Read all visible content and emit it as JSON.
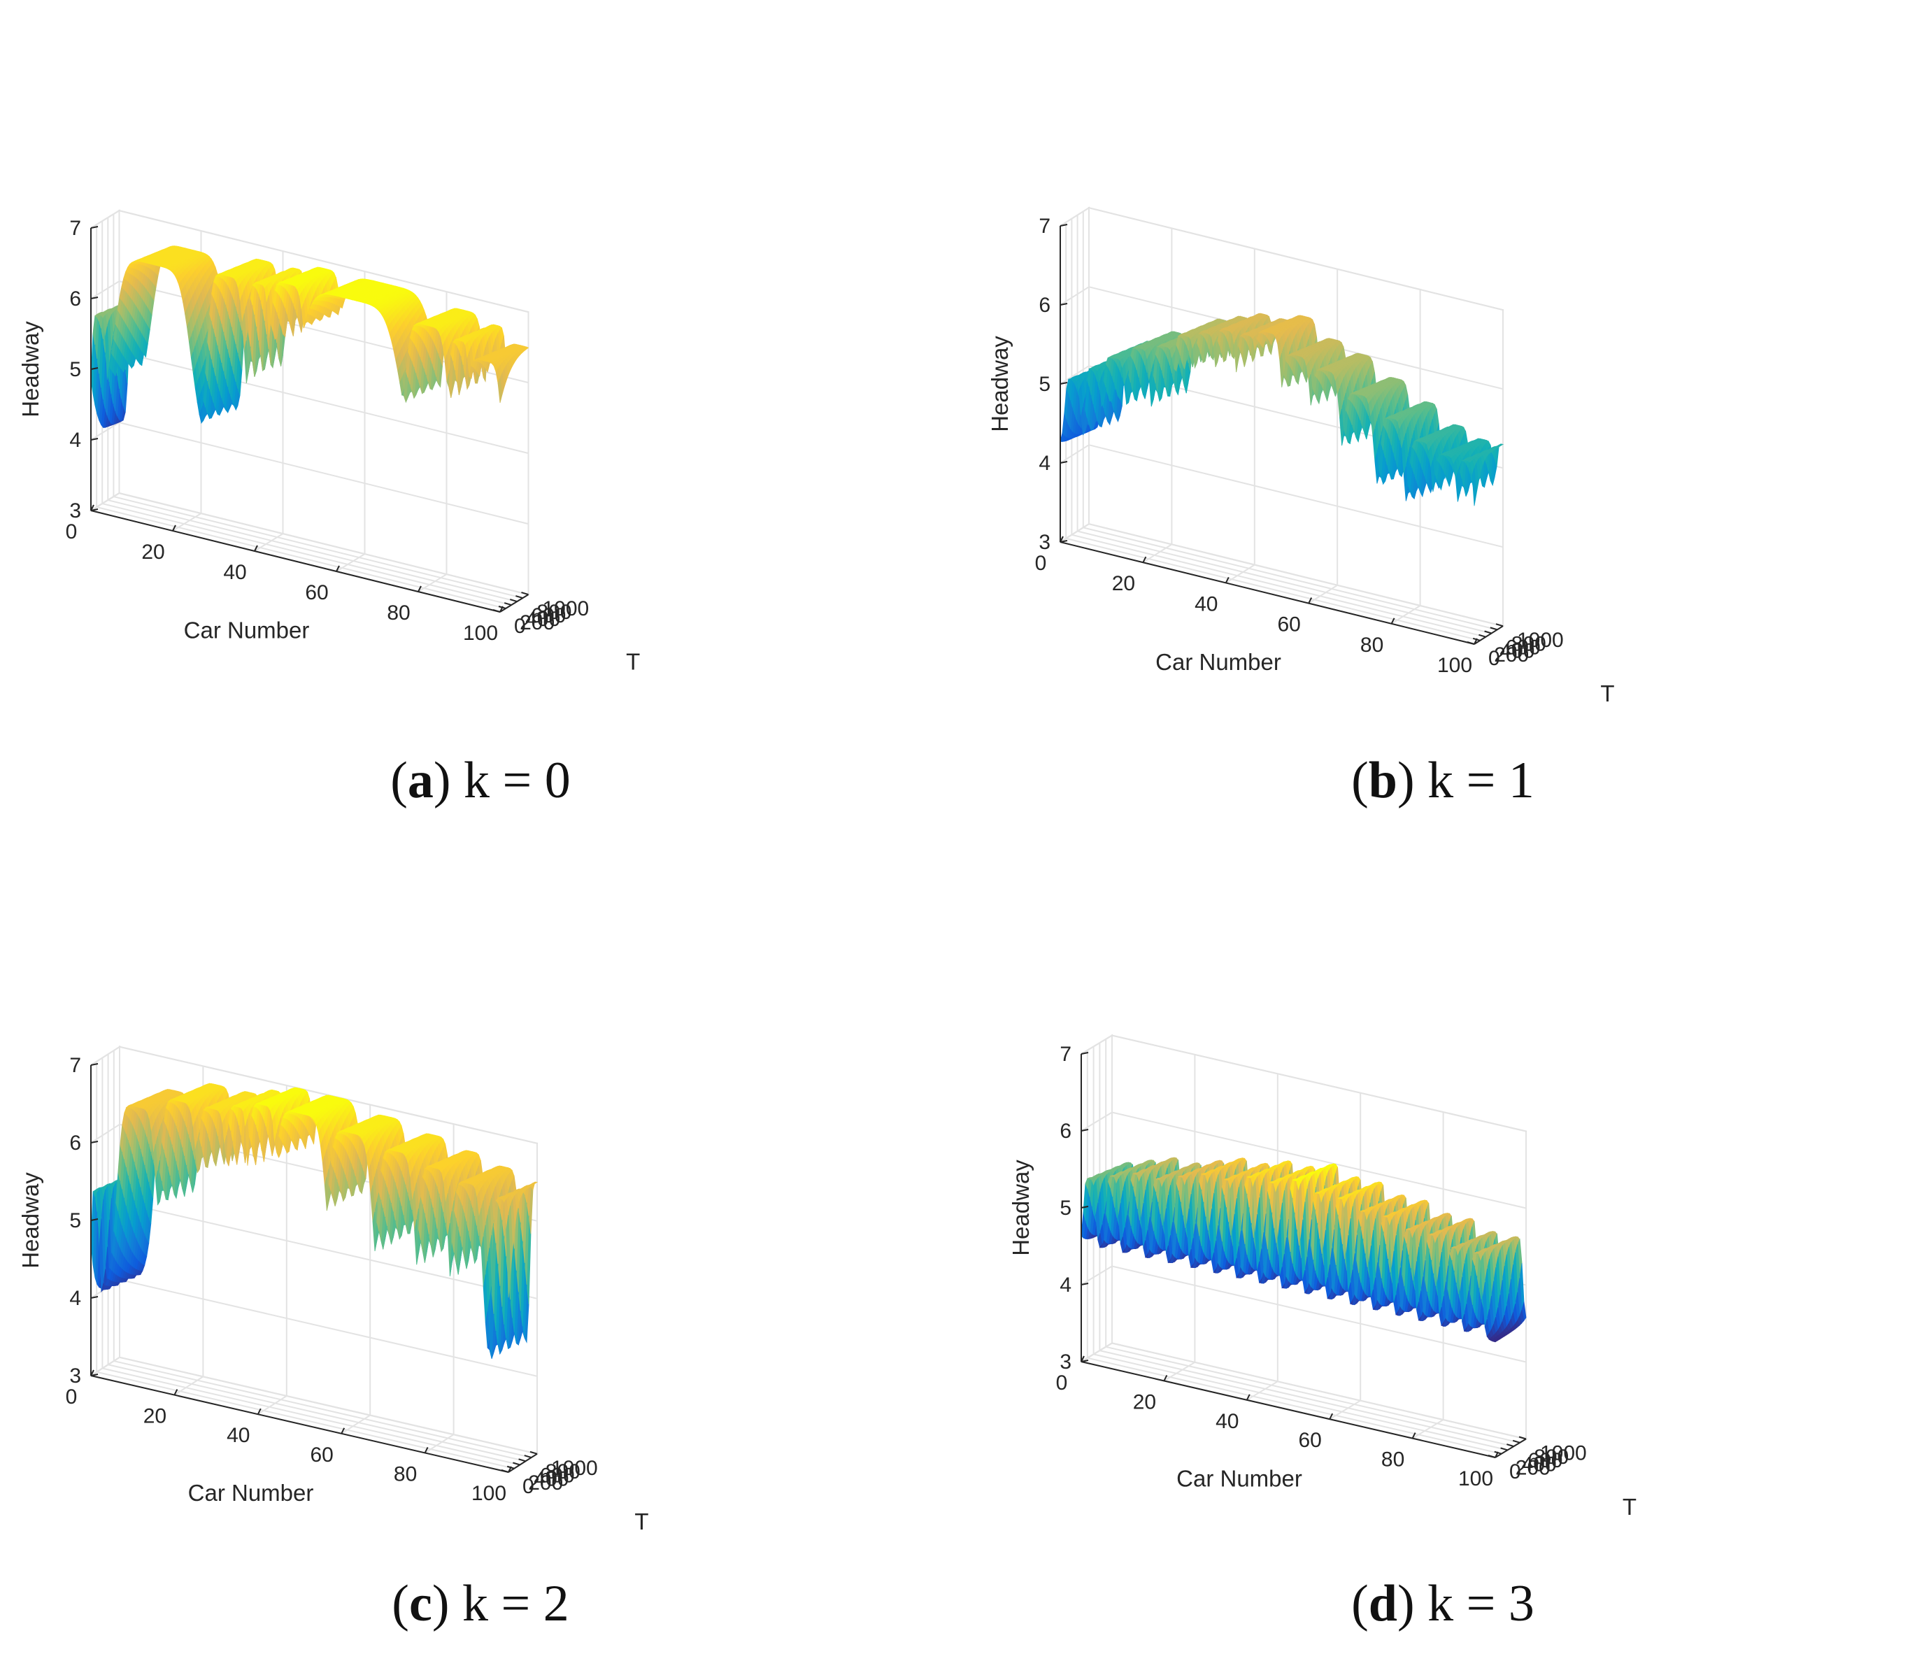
{
  "chart_data": [
    {
      "type": "surface",
      "panel_letter": "a",
      "caption_param": "k = 0",
      "xlabel": "Car Number",
      "ylabel": "T",
      "zlabel": "Headway",
      "xlim": [
        0,
        100
      ],
      "ylim": [
        0,
        1000
      ],
      "zlim": [
        3,
        7
      ],
      "xticks": [
        "0",
        "20",
        "40",
        "60",
        "80",
        "100"
      ],
      "yticks": [
        "0",
        "200",
        "400",
        "600",
        "800",
        "1000"
      ],
      "zticks": [
        "3",
        "4",
        "5",
        "6",
        "7"
      ],
      "grid": true,
      "colormap": "parula",
      "z_min": 3.9,
      "z_max": 6.9,
      "waves": [
        {
          "car": 2,
          "width": 2,
          "amp": 5.8
        },
        {
          "car": 15,
          "width": 10,
          "amp": 6.7
        },
        {
          "car": 33,
          "width": 5,
          "amp": 6.8
        },
        {
          "car": 41,
          "width": 3,
          "amp": 6.8
        },
        {
          "car": 48,
          "width": 5,
          "amp": 6.9
        },
        {
          "car": 63,
          "width": 14,
          "amp": 6.9
        },
        {
          "car": 82,
          "width": 6,
          "amp": 6.8
        },
        {
          "car": 90,
          "width": 3,
          "amp": 6.7
        },
        {
          "car": 96,
          "width": 5,
          "amp": 6.5
        }
      ]
    },
    {
      "type": "surface",
      "panel_letter": "b",
      "caption_param": "k = 1",
      "xlabel": "Car Number",
      "ylabel": "T",
      "zlabel": "Headway",
      "xlim": [
        0,
        100
      ],
      "ylim": [
        0,
        1000
      ],
      "zlim": [
        3,
        7
      ],
      "xticks": [
        "0",
        "20",
        "40",
        "60",
        "80",
        "100"
      ],
      "yticks": [
        "0",
        "200",
        "400",
        "600",
        "800",
        "1000"
      ],
      "zticks": [
        "3",
        "4",
        "5",
        "6",
        "7"
      ],
      "grid": true,
      "colormap": "parula",
      "z_min": 4.2,
      "z_max": 6.3,
      "waves": [
        {
          "car": 3,
          "width": 2,
          "amp": 5.1
        },
        {
          "car": 8,
          "width": 2,
          "amp": 5.3
        },
        {
          "car": 13,
          "width": 3,
          "amp": 5.5
        },
        {
          "car": 19,
          "width": 3,
          "amp": 5.7
        },
        {
          "car": 25,
          "width": 3,
          "amp": 5.8
        },
        {
          "car": 30,
          "width": 3,
          "amp": 6.0
        },
        {
          "car": 35,
          "width": 3,
          "amp": 6.1
        },
        {
          "car": 40,
          "width": 3,
          "amp": 6.2
        },
        {
          "car": 45,
          "width": 3,
          "amp": 6.2
        },
        {
          "car": 50,
          "width": 4,
          "amp": 6.3
        },
        {
          "car": 57,
          "width": 4,
          "amp": 6.1
        },
        {
          "car": 64,
          "width": 4,
          "amp": 6.0
        },
        {
          "car": 72,
          "width": 4,
          "amp": 5.8
        },
        {
          "car": 80,
          "width": 3,
          "amp": 5.6
        },
        {
          "car": 87,
          "width": 3,
          "amp": 5.4
        },
        {
          "car": 93,
          "width": 3,
          "amp": 5.3
        },
        {
          "car": 98,
          "width": 2,
          "amp": 5.3
        }
      ]
    },
    {
      "type": "surface",
      "panel_letter": "c",
      "caption_param": "k = 2",
      "xlabel": "Car Number",
      "ylabel": "T",
      "zlabel": "Headway",
      "xlim": [
        0,
        100
      ],
      "ylim": [
        0,
        1000
      ],
      "zlim": [
        3,
        7
      ],
      "xticks": [
        "0",
        "20",
        "40",
        "60",
        "80",
        "100"
      ],
      "yticks": [
        "0",
        "200",
        "400",
        "600",
        "800",
        "1000"
      ],
      "zticks": [
        "3",
        "4",
        "5",
        "6",
        "7"
      ],
      "grid": true,
      "colormap": "parula",
      "z_min": 4.0,
      "z_max": 7.0,
      "waves": [
        {
          "car": 1,
          "width": 1,
          "amp": 5.4
        },
        {
          "car": 11,
          "width": 5,
          "amp": 6.6
        },
        {
          "car": 21,
          "width": 5,
          "amp": 6.8
        },
        {
          "car": 29,
          "width": 4,
          "amp": 6.8
        },
        {
          "car": 35,
          "width": 3,
          "amp": 6.9
        },
        {
          "car": 41,
          "width": 4,
          "amp": 7.0
        },
        {
          "car": 50,
          "width": 7,
          "amp": 7.0
        },
        {
          "car": 62,
          "width": 6,
          "amp": 6.9
        },
        {
          "car": 73,
          "width": 5,
          "amp": 6.8
        },
        {
          "car": 82,
          "width": 4,
          "amp": 6.7
        },
        {
          "car": 90,
          "width": 4,
          "amp": 6.6
        },
        {
          "car": 98,
          "width": 2,
          "amp": 6.5
        }
      ]
    },
    {
      "type": "surface",
      "panel_letter": "d",
      "caption_param": "k = 3",
      "xlabel": "Car Number",
      "ylabel": "T",
      "zlabel": "Headway",
      "xlim": [
        0,
        100
      ],
      "ylim": [
        0,
        1000
      ],
      "zlim": [
        3,
        7
      ],
      "xticks": [
        "0",
        "20",
        "40",
        "60",
        "80",
        "100"
      ],
      "yticks": [
        "0",
        "200",
        "400",
        "600",
        "800",
        "1000"
      ],
      "zticks": [
        "3",
        "4",
        "5",
        "6",
        "7"
      ],
      "grid": true,
      "colormap": "parula",
      "z_min": 4.5,
      "z_max": 6.0,
      "waves": [
        {
          "car": 2,
          "width": 1.5,
          "amp": 5.4
        },
        {
          "car": 7.5,
          "width": 1.5,
          "amp": 5.5
        },
        {
          "car": 13,
          "width": 1.5,
          "amp": 5.6
        },
        {
          "car": 18.5,
          "width": 1.5,
          "amp": 5.6
        },
        {
          "car": 24,
          "width": 1.5,
          "amp": 5.7
        },
        {
          "car": 29.5,
          "width": 1.5,
          "amp": 5.8
        },
        {
          "car": 35,
          "width": 1.5,
          "amp": 5.8
        },
        {
          "car": 40.5,
          "width": 1.5,
          "amp": 5.9
        },
        {
          "car": 46,
          "width": 1.5,
          "amp": 5.9
        },
        {
          "car": 51.5,
          "width": 1.5,
          "amp": 6.0
        },
        {
          "car": 57,
          "width": 1.5,
          "amp": 5.9
        },
        {
          "car": 62.5,
          "width": 1.5,
          "amp": 5.9
        },
        {
          "car": 68,
          "width": 1.5,
          "amp": 5.8
        },
        {
          "car": 73.5,
          "width": 1.5,
          "amp": 5.8
        },
        {
          "car": 79,
          "width": 1.5,
          "amp": 5.7
        },
        {
          "car": 84.5,
          "width": 1.5,
          "amp": 5.7
        },
        {
          "car": 90,
          "width": 1.5,
          "amp": 5.6
        },
        {
          "car": 95.5,
          "width": 1.5,
          "amp": 5.6
        }
      ]
    }
  ]
}
